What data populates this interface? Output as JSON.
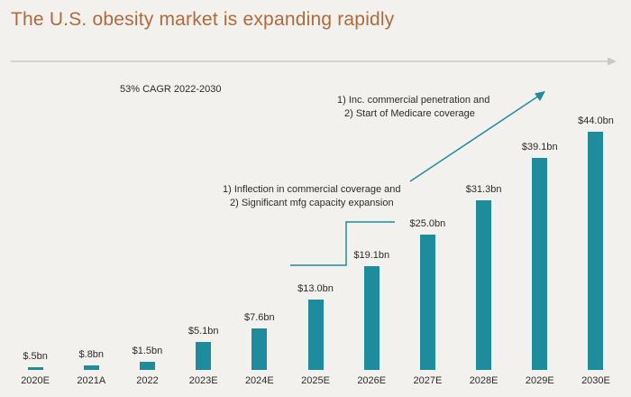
{
  "title": "The U.S. obesity market is expanding rapidly",
  "cagr_label": "53% CAGR 2022-2030",
  "annotations": {
    "medicare": {
      "line1": "1) Inc. commercial penetration and",
      "line2": "2) Start of Medicare coverage"
    },
    "inflection": {
      "line1": "1) Inflection in commercial coverage and",
      "line2": "2) Significant mfg capacity expansion"
    }
  },
  "colors": {
    "title": "#B06A3C",
    "bar": "#1F8C9D",
    "accent_line": "#1F8C9D",
    "arrow_gray": "#C9C9C4",
    "background": "#F2F1EE",
    "text": "#2B2B2B"
  },
  "chart_data": {
    "type": "bar",
    "title": "The U.S. obesity market is expanding rapidly",
    "categories": [
      "2020E",
      "2021A",
      "2022",
      "2023E",
      "2024E",
      "2025E",
      "2026E",
      "2027E",
      "2028E",
      "2029E",
      "2030E"
    ],
    "values": [
      0.5,
      0.8,
      1.5,
      5.1,
      7.6,
      13.0,
      19.1,
      25.0,
      31.3,
      39.1,
      44.0
    ],
    "value_labels": [
      "$.5bn",
      "$.8bn",
      "$1.5bn",
      "$5.1bn",
      "$7.6bn",
      "$13.0bn",
      "$19.1bn",
      "$25.0bn",
      "$31.3bn",
      "$39.1bn",
      "$44.0bn"
    ],
    "xlabel": "",
    "ylabel": "",
    "unit": "bn",
    "ylim": [
      0,
      46
    ],
    "grid": false,
    "legend": false,
    "annotations_text": [
      "53% CAGR 2022-2030",
      "1) Inc. commercial penetration and 2) Start of Medicare coverage",
      "1) Inflection in commercial coverage and 2) Significant mfg capacity expansion"
    ]
  }
}
